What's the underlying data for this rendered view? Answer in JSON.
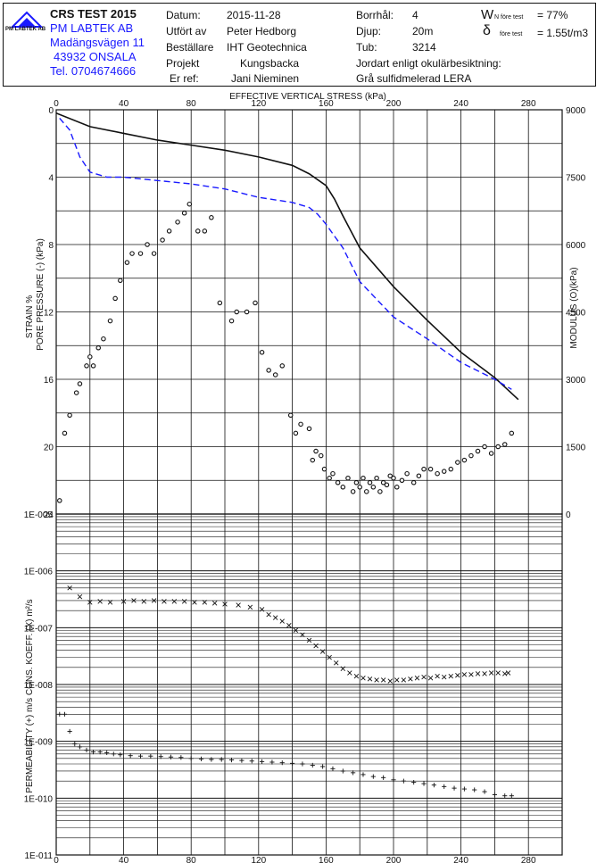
{
  "header": {
    "logo_text": "PM LABTEK AB",
    "title": "CRS TEST 2015",
    "company": "PM LABTEK AB",
    "address1": "Madängsvägen 11",
    "address2": "43932 ONSALA",
    "phone": "Tel. 0704674666",
    "rows": [
      {
        "label": "Datum:",
        "value": "2015-11-28"
      },
      {
        "label": "Utfört av",
        "value": "Peter Hedborg"
      },
      {
        "label": "Beställare",
        "value": "IHT Geotechnica"
      },
      {
        "label": "Projekt",
        "value": "Kungsbacka"
      },
      {
        "label": "Er ref:",
        "value": "Jani Nieminen"
      }
    ],
    "borrhal_label": "Borrhål:",
    "borrhal_value": "4",
    "djup_label": "Djup:",
    "djup_value": "20m",
    "tub_label": "Tub:",
    "tub_value": "3214",
    "wn_symbol": "W",
    "wn_sub": "N före test",
    "wn_value": "= 77%",
    "rho_symbol": "δ",
    "rho_sub": "före test",
    "rho_value": "= 1.55t/m3",
    "soil_label": "Jordart enligt okulärbesiktning:",
    "soil_value": "Grå sulfidmelerad LERA"
  },
  "chart_data": [
    {
      "type": "line",
      "title": "EFFECTIVE VERTICAL STRESS (kPa)",
      "xlabel": "EFFECTIVE VERTICAL STRESS (kPa)",
      "x_ticks": [
        "0",
        "40",
        "80",
        "120",
        "160",
        "200",
        "240",
        "280"
      ],
      "xlim": [
        0,
        300
      ],
      "ylabel_left": "STRAIN %",
      "ylabel_left2": "PORE PRESSURE (-) (kPa)",
      "y_ticks_left": [
        "0",
        "4",
        "8",
        "12",
        "16",
        "20",
        "24"
      ],
      "ylim_left": [
        0,
        24
      ],
      "ylabel_right": "MODULUS (O)(kPa)",
      "y_ticks_right": [
        "9000",
        "7500",
        "6000",
        "4500",
        "3000",
        "1500",
        "0"
      ],
      "ylim_right": [
        0,
        9000
      ],
      "series": [
        {
          "name": "strain",
          "style": "solid",
          "color": "#111111",
          "x": [
            0,
            20,
            40,
            60,
            80,
            100,
            120,
            140,
            150,
            160,
            165,
            170,
            180,
            200,
            220,
            240,
            260,
            274
          ],
          "y": [
            0.2,
            1.0,
            1.4,
            1.8,
            2.1,
            2.4,
            2.8,
            3.3,
            3.8,
            4.5,
            5.3,
            6.3,
            8.2,
            10.5,
            12.5,
            14.4,
            15.9,
            17.2
          ]
        },
        {
          "name": "pore pressure",
          "style": "dashed",
          "color": "#1a1aff",
          "x": [
            2,
            8,
            14,
            20,
            30,
            40,
            60,
            80,
            100,
            120,
            140,
            150,
            155,
            160,
            165,
            170,
            180,
            200,
            220,
            240,
            260,
            270
          ],
          "y": [
            0.5,
            1.2,
            2.8,
            3.7,
            4.0,
            4.0,
            4.2,
            4.4,
            4.7,
            5.2,
            5.5,
            5.8,
            6.2,
            6.8,
            7.5,
            8.2,
            10.2,
            12.3,
            13.6,
            15.0,
            16.0,
            16.6
          ]
        },
        {
          "name": "modulus",
          "style": "markers",
          "marker": "circle",
          "color": "#111111",
          "x": [
            2,
            5,
            8,
            12,
            14,
            18,
            20,
            22,
            25,
            28,
            32,
            35,
            38,
            42,
            45,
            50,
            54,
            58,
            63,
            67,
            72,
            76,
            79,
            84,
            88,
            92,
            97,
            104,
            107,
            113,
            118,
            122,
            126,
            130,
            134,
            139,
            142,
            145,
            150,
            152,
            154,
            157,
            159,
            162,
            164,
            167,
            170,
            173,
            176,
            178,
            180,
            182,
            184,
            186,
            188,
            190,
            192,
            194,
            196,
            198,
            200,
            202,
            205,
            208,
            212,
            215,
            218,
            222,
            226,
            230,
            234,
            238,
            242,
            246,
            250,
            254,
            258,
            262,
            266,
            270
          ],
          "y": [
            300,
            1800,
            2200,
            2700,
            2900,
            3300,
            3500,
            3300,
            3700,
            3900,
            4300,
            4800,
            5200,
            5600,
            5800,
            5800,
            6000,
            5800,
            6100,
            6300,
            6500,
            6700,
            6900,
            6300,
            6300,
            6600,
            4700,
            4300,
            4500,
            4500,
            4700,
            3600,
            3200,
            3100,
            3300,
            2200,
            1800,
            2000,
            1900,
            1200,
            1400,
            1300,
            1000,
            800,
            900,
            700,
            600,
            800,
            500,
            700,
            600,
            800,
            500,
            700,
            600,
            800,
            500,
            700,
            650,
            850,
            800,
            600,
            750,
            900,
            700,
            850,
            1000,
            1000,
            900,
            950,
            1000,
            1150,
            1200,
            1300,
            1400,
            1500,
            1350,
            1500,
            1550,
            1800
          ]
        }
      ]
    },
    {
      "type": "scatter",
      "ylabel": "PERMEABILITY (+) m/s CONS. KOEFF. (X) m²/s",
      "x_ticks": [
        "0",
        "40",
        "80",
        "120",
        "160",
        "200",
        "240",
        "280"
      ],
      "xlim": [
        0,
        300
      ],
      "y_scale": "log",
      "y_ticks": [
        "1E-005",
        "1E-006",
        "1E-007",
        "1E-008",
        "1E-009",
        "1E-010",
        "1E-011"
      ],
      "ylim": [
        1e-11,
        1e-05
      ],
      "series": [
        {
          "name": "consolidation coefficient",
          "marker": "x",
          "x": [
            8,
            14,
            20,
            26,
            32,
            40,
            46,
            52,
            58,
            64,
            70,
            76,
            82,
            88,
            94,
            100,
            108,
            115,
            122,
            126,
            130,
            134,
            138,
            142,
            146,
            150,
            154,
            158,
            162,
            166,
            170,
            174,
            178,
            182,
            186,
            190,
            194,
            198,
            202,
            206,
            210,
            214,
            218,
            222,
            226,
            230,
            234,
            238,
            242,
            246,
            250,
            254,
            258,
            262,
            266,
            268
          ],
          "y": [
            5e-07,
            3.5e-07,
            2.8e-07,
            2.9e-07,
            2.8e-07,
            2.9e-07,
            3e-07,
            2.9e-07,
            3e-07,
            2.9e-07,
            2.9e-07,
            2.9e-07,
            2.8e-07,
            2.8e-07,
            2.7e-07,
            2.6e-07,
            2.5e-07,
            2.3e-07,
            2.1e-07,
            1.7e-07,
            1.5e-07,
            1.3e-07,
            1.1e-07,
            9e-08,
            7.5e-08,
            6e-08,
            4.8e-08,
            3.8e-08,
            3e-08,
            2.4e-08,
            1.9e-08,
            1.6e-08,
            1.4e-08,
            1.3e-08,
            1.25e-08,
            1.2e-08,
            1.2e-08,
            1.15e-08,
            1.2e-08,
            1.2e-08,
            1.25e-08,
            1.3e-08,
            1.35e-08,
            1.3e-08,
            1.4e-08,
            1.35e-08,
            1.4e-08,
            1.45e-08,
            1.5e-08,
            1.5e-08,
            1.55e-08,
            1.55e-08,
            1.6e-08,
            1.6e-08,
            1.55e-08,
            1.6e-08
          ]
        },
        {
          "name": "permeability",
          "marker": "plus",
          "x": [
            2,
            5,
            8,
            11,
            14,
            18,
            22,
            26,
            30,
            34,
            38,
            44,
            50,
            56,
            62,
            68,
            74,
            80,
            86,
            92,
            98,
            104,
            110,
            116,
            122,
            128,
            134,
            140,
            146,
            152,
            158,
            164,
            170,
            176,
            182,
            188,
            194,
            200,
            206,
            212,
            218,
            224,
            230,
            236,
            242,
            248,
            254,
            260,
            266,
            270
          ],
          "y": [
            3e-09,
            3e-09,
            1.5e-09,
            9e-10,
            8e-10,
            7e-10,
            6.5e-10,
            6.5e-10,
            6.3e-10,
            6e-10,
            5.8e-10,
            5.6e-10,
            5.5e-10,
            5.5e-10,
            5.4e-10,
            5.3e-10,
            5.2e-10,
            5e-10,
            4.9e-10,
            4.8e-10,
            4.8e-10,
            4.7e-10,
            4.6e-10,
            4.5e-10,
            4.4e-10,
            4.3e-10,
            4.2e-10,
            4.1e-10,
            4e-10,
            3.8e-10,
            3.6e-10,
            3.3e-10,
            3e-10,
            2.8e-10,
            2.6e-10,
            2.4e-10,
            2.3e-10,
            2.1e-10,
            2e-10,
            1.9e-10,
            1.8e-10,
            1.7e-10,
            1.6e-10,
            1.5e-10,
            1.45e-10,
            1.4e-10,
            1.3e-10,
            1.15e-10,
            1.1e-10,
            1.1e-10
          ]
        }
      ]
    }
  ]
}
